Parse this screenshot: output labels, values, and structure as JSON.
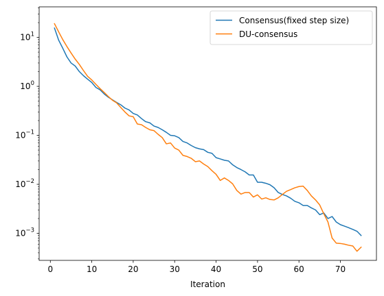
{
  "chart_data": {
    "type": "line",
    "title": "",
    "xlabel": "Iteration",
    "ylabel": "",
    "xlim": [
      -2.7,
      78.7
    ],
    "ylim": [
      0.00028,
      42
    ],
    "yscale": "log",
    "grid": false,
    "legend_position": "top-right",
    "x_ticks": [
      0,
      10,
      20,
      30,
      40,
      50,
      60,
      70
    ],
    "y_ticks": [
      {
        "value": 0.001,
        "base": "10",
        "exp": "−3"
      },
      {
        "value": 0.01,
        "base": "10",
        "exp": "−2"
      },
      {
        "value": 0.1,
        "base": "10",
        "exp": "−1"
      },
      {
        "value": 1,
        "base": "10",
        "exp": "0"
      },
      {
        "value": 10,
        "base": "10",
        "exp": "1"
      }
    ],
    "x": [
      1,
      2,
      3,
      4,
      5,
      6,
      7,
      8,
      9,
      10,
      11,
      12,
      13,
      14,
      15,
      16,
      17,
      18,
      19,
      20,
      21,
      22,
      23,
      24,
      25,
      26,
      27,
      28,
      29,
      30,
      31,
      32,
      33,
      34,
      35,
      36,
      37,
      38,
      39,
      40,
      41,
      42,
      43,
      44,
      45,
      46,
      47,
      48,
      49,
      50,
      51,
      52,
      53,
      54,
      55,
      56,
      57,
      58,
      59,
      60,
      61,
      62,
      63,
      64,
      65,
      66,
      67,
      68,
      69,
      70,
      71,
      72,
      73,
      74,
      75
    ],
    "series": [
      {
        "name": "Consensus(fixed step size)",
        "color": "#1f77b4",
        "values": [
          15.5,
          8.8,
          6.0,
          4.0,
          3.0,
          2.6,
          2.0,
          1.65,
          1.4,
          1.2,
          0.95,
          0.85,
          0.7,
          0.6,
          0.53,
          0.47,
          0.42,
          0.36,
          0.33,
          0.28,
          0.26,
          0.22,
          0.19,
          0.18,
          0.155,
          0.145,
          0.13,
          0.115,
          0.1,
          0.098,
          0.09,
          0.075,
          0.07,
          0.062,
          0.056,
          0.053,
          0.051,
          0.045,
          0.043,
          0.035,
          0.033,
          0.031,
          0.03,
          0.025,
          0.022,
          0.02,
          0.018,
          0.0155,
          0.0155,
          0.011,
          0.011,
          0.0105,
          0.0098,
          0.0085,
          0.0068,
          0.0062,
          0.0058,
          0.0052,
          0.0045,
          0.0042,
          0.0037,
          0.0037,
          0.0033,
          0.003,
          0.0024,
          0.0026,
          0.002,
          0.0022,
          0.0017,
          0.0015,
          0.0014,
          0.0013,
          0.0012,
          0.0011,
          0.0009
        ]
      },
      {
        "name": "DU-consensus",
        "color": "#ff7f0e",
        "values": [
          19.0,
          13.0,
          9.0,
          6.5,
          4.8,
          3.6,
          2.8,
          2.1,
          1.6,
          1.35,
          1.1,
          0.9,
          0.75,
          0.62,
          0.52,
          0.46,
          0.37,
          0.3,
          0.25,
          0.24,
          0.17,
          0.165,
          0.145,
          0.13,
          0.125,
          0.105,
          0.09,
          0.067,
          0.07,
          0.055,
          0.05,
          0.039,
          0.037,
          0.034,
          0.029,
          0.03,
          0.026,
          0.023,
          0.019,
          0.016,
          0.012,
          0.0135,
          0.012,
          0.0102,
          0.0075,
          0.0063,
          0.0068,
          0.0068,
          0.0055,
          0.0061,
          0.005,
          0.0053,
          0.0049,
          0.0048,
          0.0053,
          0.0062,
          0.0072,
          0.0078,
          0.0085,
          0.009,
          0.0092,
          0.0075,
          0.0058,
          0.0048,
          0.0038,
          0.0025,
          0.0017,
          0.0008,
          0.00063,
          0.00062,
          0.0006,
          0.00057,
          0.00055,
          0.00043,
          0.00052
        ]
      }
    ]
  }
}
